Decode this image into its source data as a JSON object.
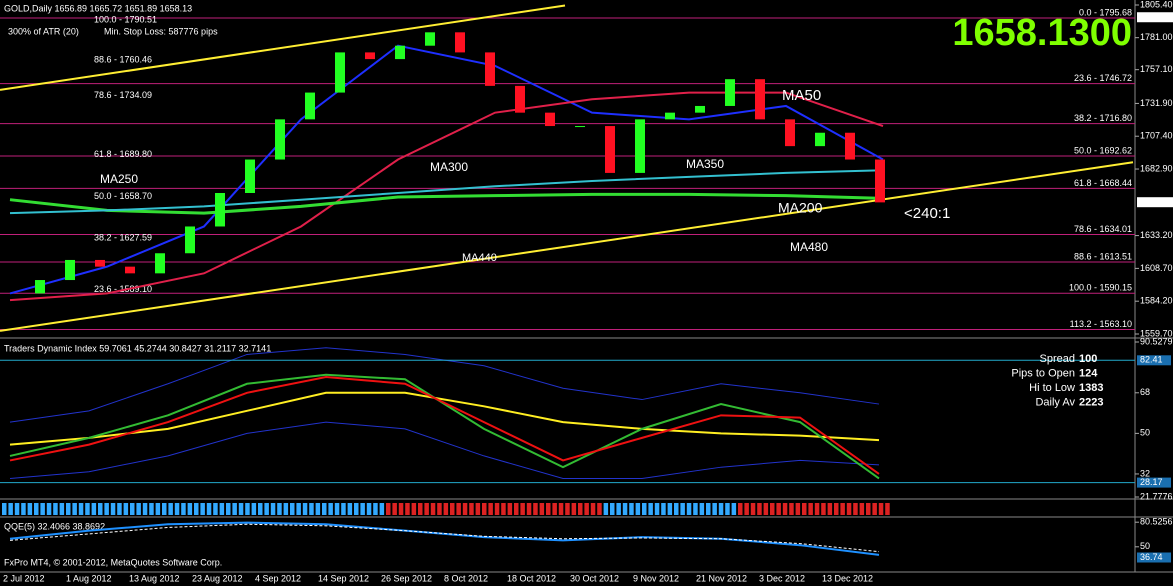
{
  "header": {
    "title": "GOLD,Daily  1656.89 1665.72 1651.89 1658.13",
    "atr": "300% of ATR (20)",
    "stop_loss": "Min. Stop Loss:   587776 pips"
  },
  "last_price": "1658.1300",
  "price_panel": {
    "ylim": [
      1559.7,
      1805.4
    ],
    "yticks": [
      {
        "value": 1805.4,
        "label": "1805.40"
      },
      {
        "value": 1781,
        "label": "1781.00"
      },
      {
        "value": 1757.1,
        "label": "1757.10"
      },
      {
        "value": 1731.9,
        "label": "1731.90"
      },
      {
        "value": 1707.4,
        "label": "1707.40"
      },
      {
        "value": 1682.9,
        "label": "1682.90"
      },
      {
        "value": 1633.2,
        "label": "1633.20"
      },
      {
        "value": 1608.7,
        "label": "1608.70"
      },
      {
        "value": 1584.2,
        "label": "1584.20"
      },
      {
        "value": 1559.7,
        "label": "1559.70"
      }
    ],
    "high_box": {
      "value": 1796.26,
      "label": "1796.26"
    },
    "current": {
      "value": 1658.13,
      "label": "1658.13"
    },
    "closes": [
      1590,
      1600,
      1615,
      1610,
      1605,
      1620,
      1640,
      1665,
      1690,
      1720,
      1740,
      1770,
      1765,
      1775,
      1785,
      1770,
      1745,
      1725,
      1715,
      1715,
      1680,
      1720,
      1725,
      1730,
      1750,
      1720,
      1700,
      1710,
      1690,
      1658
    ],
    "moving_averages": [
      {
        "color": "#1e2fff",
        "values": [
          1590,
          1610,
          1640,
          1720,
          1775,
          1760,
          1725,
          1720,
          1730,
          1690
        ]
      },
      {
        "color": "#e0204a",
        "values": [
          1585,
          1590,
          1605,
          1640,
          1690,
          1725,
          1735,
          1740,
          1740,
          1715
        ]
      },
      {
        "color": "#33dd33",
        "values": [
          1660,
          1652,
          1650,
          1655,
          1662,
          1663,
          1664,
          1664,
          1663,
          1661
        ]
      },
      {
        "color": "#33c0d0",
        "values": [
          1650,
          1652,
          1655,
          1660,
          1665,
          1670,
          1674,
          1677,
          1680,
          1682
        ]
      }
    ],
    "trendlines": [
      {
        "color": "#ffee33",
        "values": [
          1562,
          1688
        ]
      },
      {
        "color": "#ffee33",
        "values": [
          1742,
          1805
        ]
      }
    ],
    "fib_left": [
      {
        "value": 1790.51,
        "label": "100.0 - 1790.51"
      },
      {
        "value": 1760.46,
        "label": "88.6 - 1760.46"
      },
      {
        "value": 1734.09,
        "label": "78.6 - 1734.09"
      },
      {
        "value": 1689.8,
        "label": "61.8 - 1689.80"
      },
      {
        "value": 1658.7,
        "label": "50.0 - 1658.70"
      },
      {
        "value": 1627.59,
        "label": "38.2 - 1627.59"
      },
      {
        "value": 1589.1,
        "label": "23.6 - 1589.10"
      }
    ],
    "fib_right": [
      {
        "value": 1795.68,
        "label": "0.0 - 1795.68"
      },
      {
        "value": 1746.72,
        "label": "23.6 - 1746.72"
      },
      {
        "value": 1716.8,
        "label": "38.2 - 1716.80"
      },
      {
        "value": 1692.62,
        "label": "50.0 - 1692.62"
      },
      {
        "value": 1668.44,
        "label": "61.8 - 1668.44"
      },
      {
        "value": 1634.01,
        "label": "78.6 - 1634.01"
      },
      {
        "value": 1613.51,
        "label": "88.6 - 1613.51"
      },
      {
        "value": 1590.15,
        "label": "100.0 - 1590.15"
      },
      {
        "value": 1563.1,
        "label": "113.2 - 1563.10"
      }
    ],
    "ma_labels": [
      "MA50",
      "MA250",
      "MA300",
      "MA350",
      "MA200",
      "MA480",
      "MA440",
      "<240:1"
    ]
  },
  "tdi_panel": {
    "title": "Traders Dynamic Index 59.7061 45.2744 30.8427 31.2117 32.7141",
    "ylim": [
      21.7776,
      90.5279
    ],
    "yticks": [
      {
        "value": 90.5279,
        "label": "90.5279"
      },
      {
        "value": 68,
        "label": "68"
      },
      {
        "value": 50,
        "label": "50"
      },
      {
        "value": 32,
        "label": "32"
      },
      {
        "value": 21.7776,
        "label": "21.7776"
      }
    ],
    "boxes": [
      {
        "value": 82.41,
        "label": "82.41"
      },
      {
        "value": 28.17,
        "label": "28.17"
      }
    ],
    "series": [
      {
        "color": "#2233cc",
        "values": [
          55,
          60,
          72,
          85,
          88,
          85,
          80,
          70,
          65,
          72,
          68,
          63
        ]
      },
      {
        "color": "#2233cc",
        "values": [
          30,
          33,
          40,
          50,
          55,
          52,
          40,
          30,
          30,
          35,
          38,
          36
        ]
      },
      {
        "color": "#ffee22",
        "values": [
          45,
          48,
          52,
          60,
          68,
          68,
          62,
          55,
          52,
          50,
          49,
          47
        ]
      },
      {
        "color": "#33bb33",
        "values": [
          40,
          48,
          58,
          72,
          76,
          74,
          52,
          35,
          52,
          63,
          55,
          30
        ]
      },
      {
        "color": "#ee1111",
        "values": [
          38,
          45,
          55,
          68,
          75,
          72,
          55,
          38,
          48,
          58,
          57,
          32
        ]
      }
    ],
    "stats": [
      {
        "label": "Spread",
        "value": "100",
        "color": "#ffee22"
      },
      {
        "label": "Pips to Open",
        "value": "124",
        "color": "#44ff44"
      },
      {
        "label": "Hi to Low",
        "value": "1383",
        "color": "#ffee22"
      },
      {
        "label": "Daily Av",
        "value": "2223",
        "color": "#ff5533"
      }
    ]
  },
  "qqe_panel": {
    "title": "QQE(5) 32.4066 38.8692",
    "ylim": [
      20,
      82
    ],
    "yticks": [
      {
        "value": 80.5256,
        "label": "80.5256"
      },
      {
        "value": 50,
        "label": "50"
      }
    ],
    "box": {
      "value": 36.74,
      "label": "36.74"
    },
    "series": [
      {
        "color": "#1e90ff",
        "values": [
          60,
          70,
          78,
          80,
          78,
          70,
          62,
          58,
          62,
          60,
          52,
          40
        ]
      },
      {
        "color": "#ffffff",
        "values": [
          58,
          66,
          74,
          78,
          76,
          70,
          63,
          60,
          61,
          60,
          54,
          44
        ]
      }
    ]
  },
  "footer": "FxPro MT4, © 2001-2012, MetaQuotes Software Corp.",
  "dates": [
    "2 Jul 2012",
    "1 Aug 2012",
    "13 Aug 2012",
    "23 Aug 2012",
    "4 Sep 2012",
    "14 Sep 2012",
    "26 Sep 2012",
    "8 Oct 2012",
    "18 Oct 2012",
    "30 Oct 2012",
    "9 Nov 2012",
    "21 Nov 2012",
    "3 Dec 2012",
    "13 Dec 2012"
  ]
}
